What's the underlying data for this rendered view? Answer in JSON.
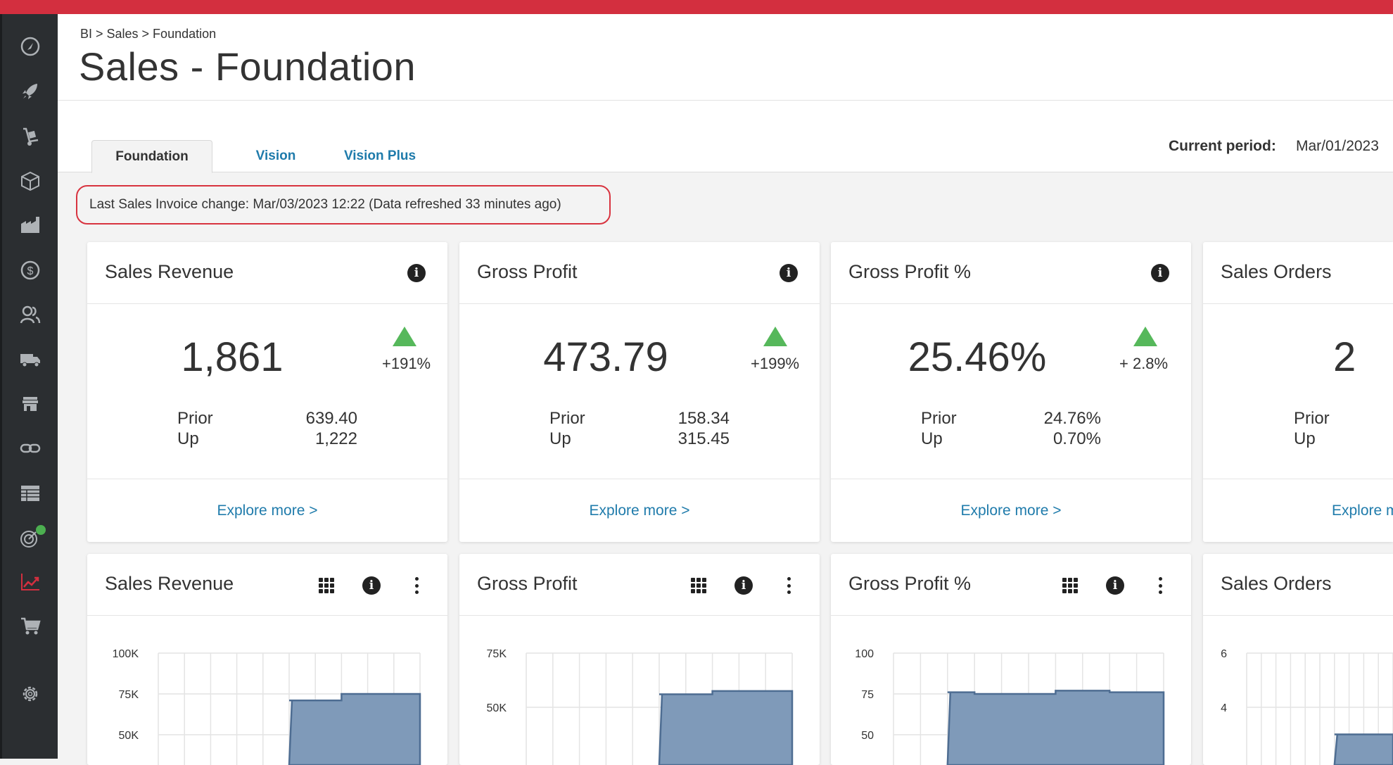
{
  "breadcrumb": "BI > Sales > Foundation",
  "page_title": "Sales - Foundation",
  "tabs": [
    {
      "label": "Foundation",
      "active": true
    },
    {
      "label": "Vision",
      "active": false
    },
    {
      "label": "Vision Plus",
      "active": false
    }
  ],
  "period": {
    "label": "Current period:",
    "value": "Mar/01/2023"
  },
  "refresh_note": "Last Sales Invoice change: Mar/03/2023 12:22 (Data refreshed 33 minutes ago)",
  "sidebar_icons": [
    "dashboard-icon",
    "rocket-icon",
    "hand-truck-icon",
    "box-icon",
    "factory-icon",
    "dollar-icon",
    "users-icon",
    "truck-icon",
    "store-icon",
    "link-icon",
    "table-icon",
    "radar-icon",
    "trending-chart-icon",
    "cart-icon",
    "gear-icon"
  ],
  "kpis": [
    {
      "title": "Sales Revenue",
      "value": "1,861",
      "change": "+191%",
      "prior_label": "Prior",
      "prior": "639.40",
      "up_label": "Up",
      "up": "1,222",
      "explore": "Explore more >"
    },
    {
      "title": "Gross Profit",
      "value": "473.79",
      "change": "+199%",
      "prior_label": "Prior",
      "prior": "158.34",
      "up_label": "Up",
      "up": "315.45",
      "explore": "Explore more >"
    },
    {
      "title": "Gross Profit %",
      "value": "25.46%",
      "change": "+ 2.8%",
      "prior_label": "Prior",
      "prior": "24.76%",
      "up_label": "Up",
      "up": "0.70%",
      "explore": "Explore more >"
    },
    {
      "title": "Sales Orders",
      "value": "2",
      "change": "",
      "prior_label": "Prior",
      "prior": "",
      "up_label": "Up",
      "up": "",
      "explore": "Explore more >"
    }
  ],
  "colors": {
    "accent": "#d32f3f",
    "link": "#1f7bab",
    "up_arrow": "#56b85b",
    "area_fill": "#7f9ab9",
    "area_stroke": "#4e6d92"
  },
  "chart_data": [
    {
      "type": "area",
      "title": "Sales Revenue",
      "y_ticks": [
        "100K",
        "75K",
        "50K"
      ],
      "ylim": [
        50000,
        100000
      ],
      "x": [
        0,
        1,
        2,
        3,
        4,
        5,
        6,
        7,
        8,
        9
      ],
      "values": [
        null,
        null,
        null,
        null,
        null,
        71000,
        71000,
        75000,
        75000,
        75000
      ]
    },
    {
      "type": "area",
      "title": "Gross Profit",
      "y_ticks": [
        "75K",
        "50K"
      ],
      "ylim": [
        50000,
        75000
      ],
      "x": [
        0,
        1,
        2,
        3,
        4,
        5,
        6,
        7,
        8,
        9
      ],
      "values": [
        null,
        null,
        null,
        null,
        null,
        56000,
        56000,
        57500,
        57500,
        57500
      ]
    },
    {
      "type": "area",
      "title": "Gross Profit %",
      "y_ticks": [
        "100",
        "75",
        "50"
      ],
      "ylim": [
        50,
        100
      ],
      "x": [
        0,
        1,
        2,
        3,
        4,
        5,
        6,
        7,
        8,
        9
      ],
      "values": [
        null,
        null,
        76,
        75,
        75,
        75,
        77,
        77,
        76,
        76
      ]
    },
    {
      "type": "area",
      "title": "Sales Orders",
      "y_ticks": [
        "6",
        "4"
      ],
      "ylim": [
        4,
        6
      ],
      "x": [
        0,
        1,
        2,
        3,
        4,
        5,
        6,
        7,
        8,
        9
      ],
      "values": [
        null,
        null,
        null,
        null,
        null,
        null,
        3,
        3,
        3,
        3
      ]
    }
  ]
}
